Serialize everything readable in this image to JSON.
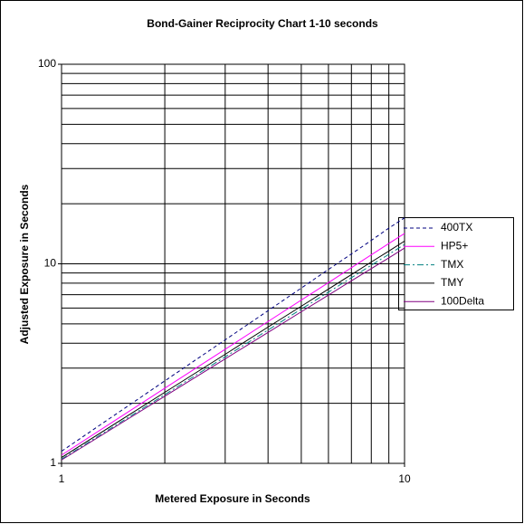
{
  "chart_data": {
    "type": "line",
    "title": "Bond-Gainer Reciprocity Chart 1-10 seconds",
    "x_label": "Metered Exposure in Seconds",
    "y_label": "Adjusted Exposure in Seconds",
    "log_x": true,
    "log_y": true,
    "grid": true,
    "x": [
      1,
      2,
      3,
      4,
      5,
      6,
      7,
      8,
      9,
      10
    ],
    "xlim": [
      1,
      10
    ],
    "xticks": [
      1,
      10
    ],
    "ylim": [
      1,
      100
    ],
    "yticks": [
      1,
      10,
      100
    ],
    "legend": "right",
    "series": [
      {
        "name": "400TX",
        "color": "#000080",
        "dash": "dashed",
        "values": [
          1.15,
          2.59,
          4.16,
          5.82,
          7.56,
          9.37,
          11.2,
          13.1,
          15.1,
          17
        ]
      },
      {
        "name": "HP5+",
        "color": "#ff00ff",
        "dash": "solid",
        "values": [
          1.1,
          2.38,
          3.73,
          5.14,
          6.58,
          8.05,
          9.56,
          11.09,
          12.64,
          14.2
        ]
      },
      {
        "name": "TMX",
        "color": "#008080",
        "dash": "dashdot",
        "values": [
          1.05,
          2.21,
          3.42,
          4.66,
          5.93,
          7.21,
          8.52,
          9.84,
          11.16,
          12.5
        ]
      },
      {
        "name": "TMY",
        "color": "#000000",
        "dash": "solid",
        "values": [
          1.07,
          2.27,
          3.52,
          4.82,
          6.13,
          7.47,
          8.83,
          10.21,
          11.58,
          13
        ]
      },
      {
        "name": "100Delta",
        "color": "#800080",
        "dash": "solid",
        "values": [
          1.04,
          2.17,
          3.34,
          4.53,
          5.75,
          6.97,
          8.22,
          9.46,
          10.71,
          12
        ]
      }
    ]
  }
}
